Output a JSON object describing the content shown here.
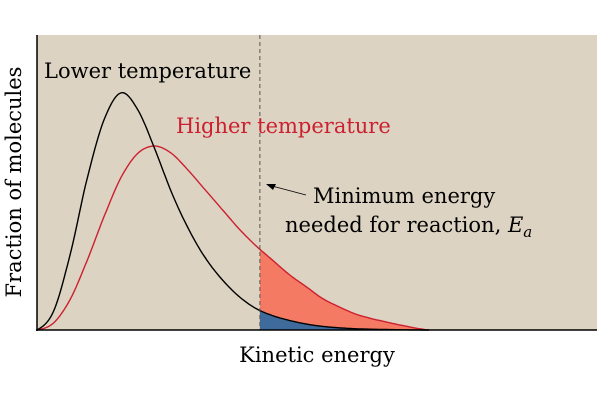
{
  "chart_data": {
    "type": "line",
    "xlabel": "Kinetic energy",
    "ylabel": "Fraction of molecules",
    "xlim": [
      0,
      10
    ],
    "ylim": [
      0,
      1
    ],
    "grid": false,
    "legend": "inline labels on curves",
    "series": [
      {
        "name": "Lower temperature",
        "color": "#000000",
        "x": [
          0.0,
          0.3,
          0.6,
          0.9,
          1.2,
          1.5,
          1.8,
          2.1,
          2.4,
          2.7,
          3.0,
          3.3,
          3.6,
          3.9,
          4.2,
          4.5,
          4.8,
          5.1,
          5.4,
          5.7,
          6.0,
          6.5,
          7.0
        ],
        "y": [
          0.0,
          0.08,
          0.32,
          0.63,
          0.87,
          0.98,
          0.91,
          0.75,
          0.57,
          0.42,
          0.3,
          0.21,
          0.14,
          0.09,
          0.06,
          0.04,
          0.025,
          0.015,
          0.009,
          0.005,
          0.003,
          0.001,
          0.0
        ]
      },
      {
        "name": "Higher temperature",
        "color": "#cc1f2f",
        "x": [
          0.0,
          0.3,
          0.6,
          0.9,
          1.2,
          1.5,
          1.8,
          2.1,
          2.4,
          2.7,
          3.0,
          3.3,
          3.6,
          3.9,
          4.2,
          4.5,
          4.8,
          5.1,
          5.4,
          5.7,
          6.0,
          6.5,
          7.0
        ],
        "y": [
          0.0,
          0.03,
          0.13,
          0.29,
          0.47,
          0.63,
          0.73,
          0.76,
          0.73,
          0.66,
          0.58,
          0.5,
          0.42,
          0.35,
          0.29,
          0.23,
          0.18,
          0.13,
          0.095,
          0.065,
          0.045,
          0.02,
          0.0
        ]
      }
    ],
    "threshold": {
      "x": 3.98,
      "label_line1": "Minimum energy",
      "label_line2": "needed for reaction,",
      "symbol": "E",
      "subscript": "a"
    },
    "shading": {
      "higher_color": "#f47a64",
      "lower_color": "#3f6a9c"
    },
    "background_color": "#ddd3c2"
  }
}
